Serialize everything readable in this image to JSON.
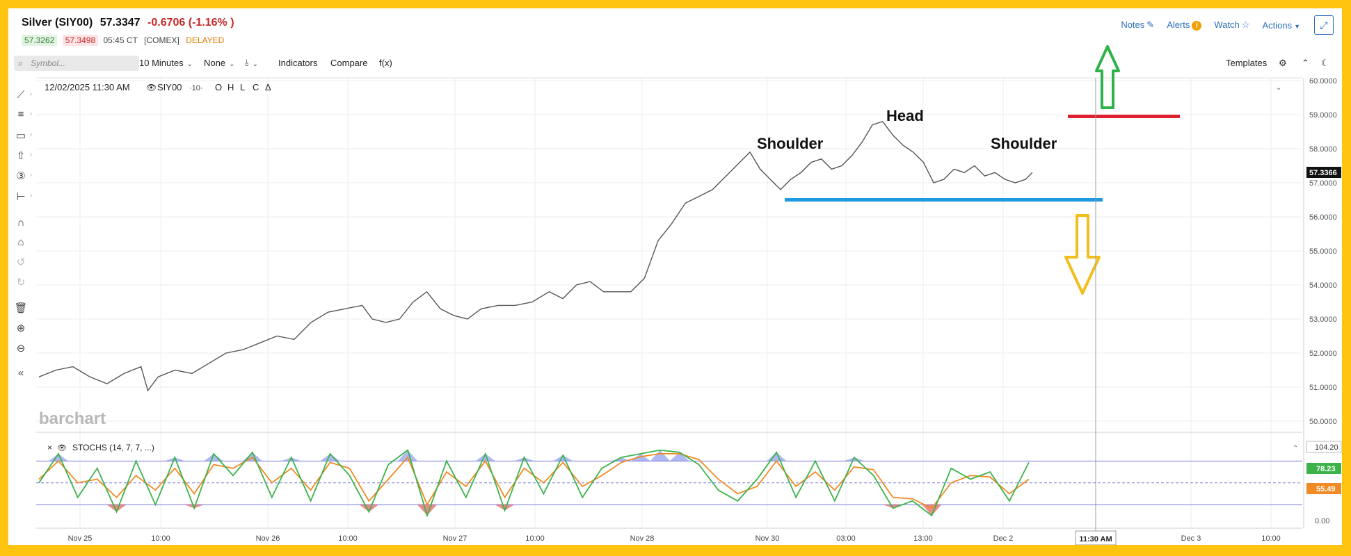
{
  "header": {
    "symbol": "Silver (SIY00)",
    "last": "57.3347",
    "change": "-0.6706 (-1.16% )",
    "bid": "57.3262",
    "ask": "57.3498",
    "time": "05:45 CT",
    "exchange": "[COMEX]",
    "status": "DELAYED"
  },
  "top_links": {
    "notes": "Notes",
    "alerts": "Alerts",
    "watch": "Watch",
    "actions": "Actions"
  },
  "toolbar": {
    "search_placeholder": "Symbol...",
    "interval": "10 Minutes",
    "study": "None",
    "indicators": "Indicators",
    "compare": "Compare",
    "fx": "f(x)",
    "templates": "Templates"
  },
  "chart_header": {
    "datetime": "12/02/2025 11:30 AM",
    "symbol_label": "SIY00",
    "interval_tag": "·10·",
    "ohlc": [
      "O",
      "H",
      "L",
      "C",
      "Δ"
    ]
  },
  "watermark": "barchart",
  "stoch_label": "STOCHS (14, 7, 7, ...)",
  "colors": {
    "frame": "#FFC40F",
    "price_line": "#555555",
    "neckline": "#1e9be0",
    "resistance": "#e02030",
    "up_arrow": "#2db34a",
    "down_arrow": "#f2be1c",
    "stoch_fast": "#3cb34a",
    "stoch_slow": "#f08a24",
    "overbought_fill": "#6f7fe8",
    "oversold_fill": "#e04040"
  },
  "chart_data": {
    "type": "line",
    "price_axis": {
      "ticks": [
        "60.0000",
        "59.0000",
        "58.0000",
        "57.0000",
        "56.0000",
        "55.0000",
        "54.0000",
        "53.0000",
        "52.0000",
        "51.0000",
        "50.0000"
      ],
      "current_price_label": "57.3366",
      "ylim": [
        50,
        60
      ]
    },
    "x_labels": [
      "Nov 25",
      "10:00",
      "Nov 26",
      "10:00",
      "Nov 27",
      "10:00",
      "Nov 28",
      "Nov 30",
      "03:00",
      "13:00",
      "Dec 2",
      "11:30 AM",
      "Dec 3",
      "10:00"
    ],
    "price_series": [
      {
        "x": 0.0,
        "y": 51.3
      },
      {
        "x": 0.5,
        "y": 51.5
      },
      {
        "x": 1.0,
        "y": 51.6
      },
      {
        "x": 1.5,
        "y": 51.3
      },
      {
        "x": 2.0,
        "y": 51.1
      },
      {
        "x": 2.5,
        "y": 51.4
      },
      {
        "x": 3.0,
        "y": 51.6
      },
      {
        "x": 3.2,
        "y": 50.9
      },
      {
        "x": 3.5,
        "y": 51.3
      },
      {
        "x": 4.0,
        "y": 51.5
      },
      {
        "x": 4.5,
        "y": 51.4
      },
      {
        "x": 5.0,
        "y": 51.7
      },
      {
        "x": 5.5,
        "y": 52.0
      },
      {
        "x": 6.0,
        "y": 52.1
      },
      {
        "x": 6.5,
        "y": 52.3
      },
      {
        "x": 7.0,
        "y": 52.5
      },
      {
        "x": 7.5,
        "y": 52.4
      },
      {
        "x": 8.0,
        "y": 52.9
      },
      {
        "x": 8.5,
        "y": 53.2
      },
      {
        "x": 9.0,
        "y": 53.3
      },
      {
        "x": 9.5,
        "y": 53.4
      },
      {
        "x": 9.8,
        "y": 53.0
      },
      {
        "x": 10.2,
        "y": 52.9
      },
      {
        "x": 10.6,
        "y": 53.0
      },
      {
        "x": 11.0,
        "y": 53.5
      },
      {
        "x": 11.4,
        "y": 53.8
      },
      {
        "x": 11.8,
        "y": 53.3
      },
      {
        "x": 12.2,
        "y": 53.1
      },
      {
        "x": 12.6,
        "y": 53.0
      },
      {
        "x": 13.0,
        "y": 53.3
      },
      {
        "x": 13.5,
        "y": 53.4
      },
      {
        "x": 14.0,
        "y": 53.4
      },
      {
        "x": 14.5,
        "y": 53.5
      },
      {
        "x": 15.0,
        "y": 53.8
      },
      {
        "x": 15.4,
        "y": 53.6
      },
      {
        "x": 15.8,
        "y": 54.0
      },
      {
        "x": 16.2,
        "y": 54.1
      },
      {
        "x": 16.6,
        "y": 53.8
      },
      {
        "x": 17.0,
        "y": 53.8
      },
      {
        "x": 17.4,
        "y": 53.8
      },
      {
        "x": 17.8,
        "y": 54.2
      },
      {
        "x": 18.2,
        "y": 55.3
      },
      {
        "x": 18.6,
        "y": 55.8
      },
      {
        "x": 19.0,
        "y": 56.4
      },
      {
        "x": 19.4,
        "y": 56.6
      },
      {
        "x": 19.8,
        "y": 56.8
      },
      {
        "x": 20.2,
        "y": 57.2
      },
      {
        "x": 20.6,
        "y": 57.6
      },
      {
        "x": 20.9,
        "y": 57.9
      },
      {
        "x": 21.2,
        "y": 57.4
      },
      {
        "x": 21.5,
        "y": 57.1
      },
      {
        "x": 21.8,
        "y": 56.8
      },
      {
        "x": 22.1,
        "y": 57.1
      },
      {
        "x": 22.4,
        "y": 57.3
      },
      {
        "x": 22.7,
        "y": 57.6
      },
      {
        "x": 23.0,
        "y": 57.7
      },
      {
        "x": 23.3,
        "y": 57.4
      },
      {
        "x": 23.6,
        "y": 57.5
      },
      {
        "x": 23.9,
        "y": 57.8
      },
      {
        "x": 24.2,
        "y": 58.2
      },
      {
        "x": 24.5,
        "y": 58.7
      },
      {
        "x": 24.8,
        "y": 58.8
      },
      {
        "x": 25.1,
        "y": 58.4
      },
      {
        "x": 25.4,
        "y": 58.1
      },
      {
        "x": 25.7,
        "y": 57.9
      },
      {
        "x": 26.0,
        "y": 57.6
      },
      {
        "x": 26.3,
        "y": 57.0
      },
      {
        "x": 26.6,
        "y": 57.1
      },
      {
        "x": 26.9,
        "y": 57.4
      },
      {
        "x": 27.2,
        "y": 57.3
      },
      {
        "x": 27.5,
        "y": 57.5
      },
      {
        "x": 27.8,
        "y": 57.2
      },
      {
        "x": 28.1,
        "y": 57.3
      },
      {
        "x": 28.4,
        "y": 57.1
      },
      {
        "x": 28.7,
        "y": 57.0
      },
      {
        "x": 29.0,
        "y": 57.1
      },
      {
        "x": 29.2,
        "y": 57.3
      }
    ],
    "annotations": {
      "labels": [
        "Shoulder",
        "Head",
        "Shoulder"
      ],
      "neckline_price": 56.5,
      "resistance_price": 58.95
    },
    "stochastic": {
      "axis_labels": [
        "104.20",
        "78.23",
        "55.49",
        "0.00"
      ],
      "upper_level": 80,
      "lower_level": 20,
      "ylim": [
        0,
        104.2
      ],
      "fast": [
        {
          "x": 0.0,
          "y": 50
        },
        {
          "x": 0.6,
          "y": 90
        },
        {
          "x": 1.2,
          "y": 30
        },
        {
          "x": 1.8,
          "y": 70
        },
        {
          "x": 2.4,
          "y": 10
        },
        {
          "x": 3.0,
          "y": 80
        },
        {
          "x": 3.6,
          "y": 20
        },
        {
          "x": 4.2,
          "y": 85
        },
        {
          "x": 4.8,
          "y": 15
        },
        {
          "x": 5.4,
          "y": 90
        },
        {
          "x": 6.0,
          "y": 60
        },
        {
          "x": 6.6,
          "y": 92
        },
        {
          "x": 7.2,
          "y": 30
        },
        {
          "x": 7.8,
          "y": 85
        },
        {
          "x": 8.4,
          "y": 25
        },
        {
          "x": 9.0,
          "y": 90
        },
        {
          "x": 9.6,
          "y": 60
        },
        {
          "x": 10.2,
          "y": 10
        },
        {
          "x": 10.8,
          "y": 75
        },
        {
          "x": 11.4,
          "y": 95
        },
        {
          "x": 12.0,
          "y": 5
        },
        {
          "x": 12.6,
          "y": 80
        },
        {
          "x": 13.2,
          "y": 30
        },
        {
          "x": 13.8,
          "y": 90
        },
        {
          "x": 14.4,
          "y": 12
        },
        {
          "x": 15.0,
          "y": 85
        },
        {
          "x": 15.6,
          "y": 35
        },
        {
          "x": 16.2,
          "y": 88
        },
        {
          "x": 16.8,
          "y": 30
        },
        {
          "x": 17.4,
          "y": 70
        },
        {
          "x": 18.0,
          "y": 85
        },
        {
          "x": 18.6,
          "y": 90
        },
        {
          "x": 19.2,
          "y": 95
        },
        {
          "x": 19.8,
          "y": 92
        },
        {
          "x": 20.4,
          "y": 75
        },
        {
          "x": 21.0,
          "y": 40
        },
        {
          "x": 21.6,
          "y": 25
        },
        {
          "x": 22.2,
          "y": 55
        },
        {
          "x": 22.8,
          "y": 92
        },
        {
          "x": 23.4,
          "y": 30
        },
        {
          "x": 24.0,
          "y": 80
        },
        {
          "x": 24.6,
          "y": 25
        },
        {
          "x": 25.2,
          "y": 85
        },
        {
          "x": 25.8,
          "y": 60
        },
        {
          "x": 26.4,
          "y": 15
        },
        {
          "x": 27.0,
          "y": 25
        },
        {
          "x": 27.6,
          "y": 5
        },
        {
          "x": 28.2,
          "y": 70
        },
        {
          "x": 28.8,
          "y": 55
        },
        {
          "x": 29.4,
          "y": 65
        },
        {
          "x": 30.0,
          "y": 25
        },
        {
          "x": 30.6,
          "y": 78
        }
      ],
      "slow": [
        {
          "x": 0.0,
          "y": 55
        },
        {
          "x": 0.6,
          "y": 80
        },
        {
          "x": 1.2,
          "y": 50
        },
        {
          "x": 1.8,
          "y": 55
        },
        {
          "x": 2.4,
          "y": 30
        },
        {
          "x": 3.0,
          "y": 60
        },
        {
          "x": 3.6,
          "y": 40
        },
        {
          "x": 4.2,
          "y": 70
        },
        {
          "x": 4.8,
          "y": 35
        },
        {
          "x": 5.4,
          "y": 75
        },
        {
          "x": 6.0,
          "y": 70
        },
        {
          "x": 6.6,
          "y": 85
        },
        {
          "x": 7.2,
          "y": 50
        },
        {
          "x": 7.8,
          "y": 70
        },
        {
          "x": 8.4,
          "y": 40
        },
        {
          "x": 9.0,
          "y": 78
        },
        {
          "x": 9.6,
          "y": 70
        },
        {
          "x": 10.2,
          "y": 25
        },
        {
          "x": 10.8,
          "y": 55
        },
        {
          "x": 11.4,
          "y": 85
        },
        {
          "x": 12.0,
          "y": 20
        },
        {
          "x": 12.6,
          "y": 65
        },
        {
          "x": 13.2,
          "y": 45
        },
        {
          "x": 13.8,
          "y": 80
        },
        {
          "x": 14.4,
          "y": 30
        },
        {
          "x": 15.0,
          "y": 70
        },
        {
          "x": 15.6,
          "y": 50
        },
        {
          "x": 16.2,
          "y": 78
        },
        {
          "x": 16.8,
          "y": 45
        },
        {
          "x": 17.4,
          "y": 60
        },
        {
          "x": 18.0,
          "y": 78
        },
        {
          "x": 18.6,
          "y": 86
        },
        {
          "x": 19.2,
          "y": 90
        },
        {
          "x": 19.8,
          "y": 90
        },
        {
          "x": 20.4,
          "y": 82
        },
        {
          "x": 21.0,
          "y": 55
        },
        {
          "x": 21.6,
          "y": 35
        },
        {
          "x": 22.2,
          "y": 45
        },
        {
          "x": 22.8,
          "y": 80
        },
        {
          "x": 23.4,
          "y": 45
        },
        {
          "x": 24.0,
          "y": 65
        },
        {
          "x": 24.6,
          "y": 40
        },
        {
          "x": 25.2,
          "y": 72
        },
        {
          "x": 25.8,
          "y": 68
        },
        {
          "x": 26.4,
          "y": 30
        },
        {
          "x": 27.0,
          "y": 28
        },
        {
          "x": 27.6,
          "y": 15
        },
        {
          "x": 28.2,
          "y": 50
        },
        {
          "x": 28.8,
          "y": 60
        },
        {
          "x": 29.4,
          "y": 58
        },
        {
          "x": 30.0,
          "y": 35
        },
        {
          "x": 30.6,
          "y": 55
        }
      ]
    }
  }
}
